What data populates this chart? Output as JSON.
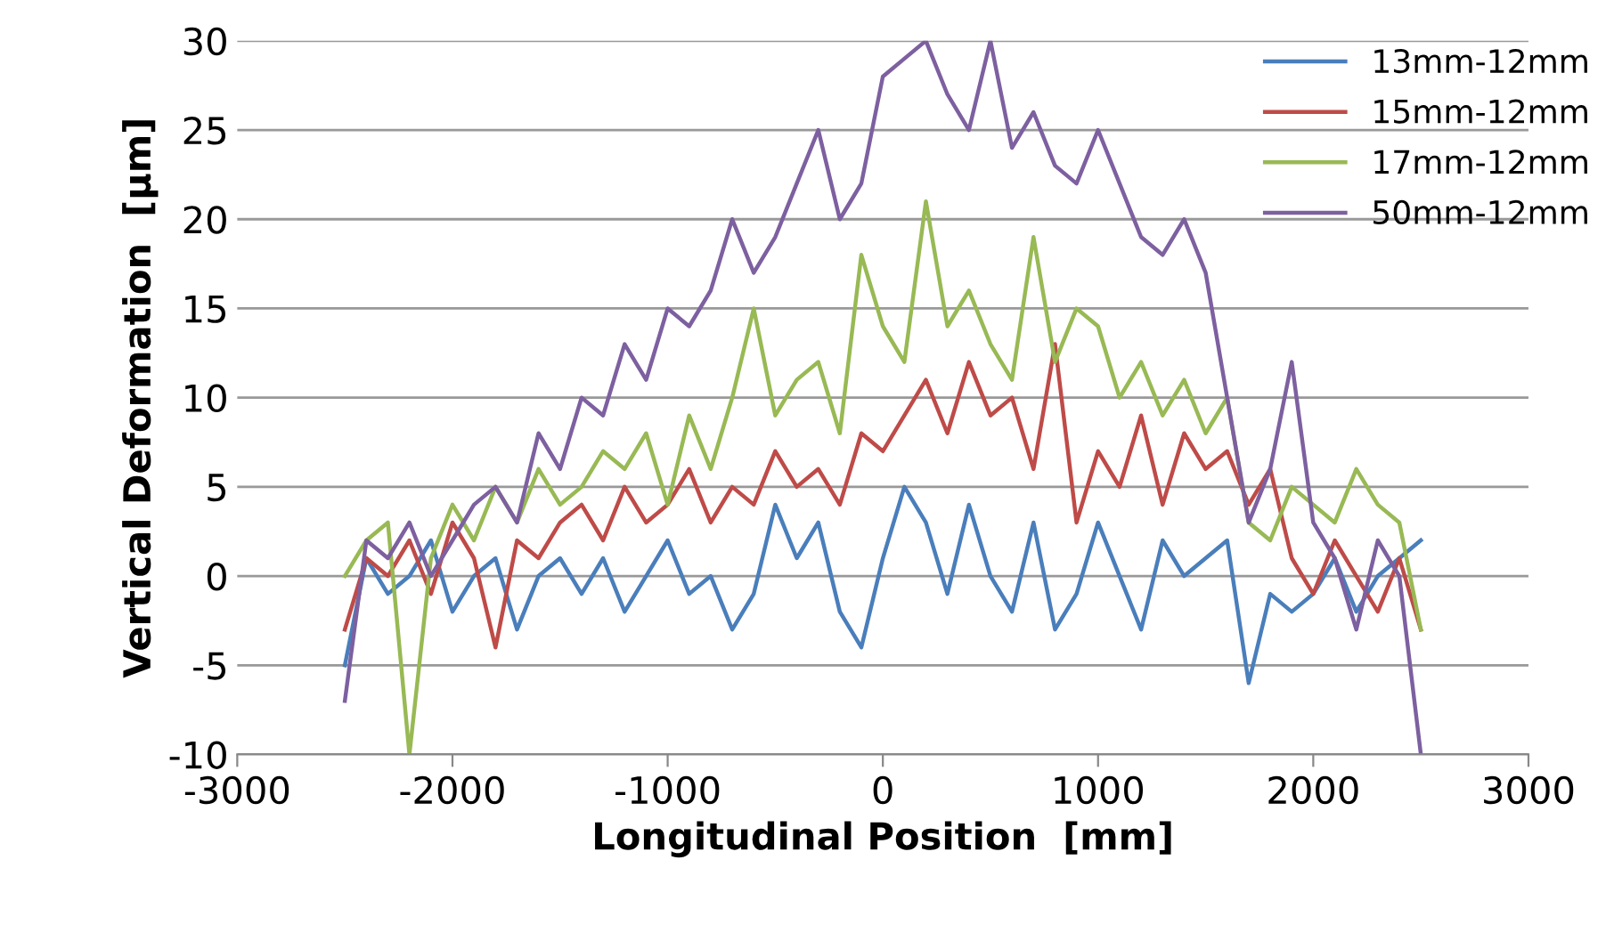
{
  "chart_data": {
    "type": "line",
    "xlabel": "Longitudinal Position  [mm]",
    "ylabel": "Vertical Deformation  [µm]",
    "x": [
      -2500,
      -2400,
      -2300,
      -2200,
      -2100,
      -2000,
      -1900,
      -1800,
      -1700,
      -1600,
      -1500,
      -1400,
      -1300,
      -1200,
      -1100,
      -1000,
      -900,
      -800,
      -700,
      -600,
      -500,
      -400,
      -300,
      -200,
      -100,
      0,
      100,
      200,
      300,
      400,
      500,
      600,
      700,
      800,
      900,
      1000,
      1100,
      1200,
      1300,
      1400,
      1500,
      1600,
      1700,
      1800,
      1900,
      2000,
      2100,
      2200,
      2300,
      2400,
      2500
    ],
    "series": [
      {
        "name": "13mm-12mm",
        "color": "#4a7ebb",
        "values": [
          -5,
          1,
          -1,
          0,
          2,
          -2,
          0,
          1,
          -3,
          0,
          1,
          -1,
          1,
          -2,
          0,
          2,
          -1,
          0,
          -3,
          -1,
          4,
          1,
          3,
          -2,
          -4,
          1,
          5,
          3,
          -1,
          4,
          0,
          -2,
          3,
          -3,
          -1,
          3,
          0,
          -3,
          2,
          0,
          1,
          2,
          -6,
          -1,
          -2,
          -1,
          1,
          -2,
          0,
          1,
          2
        ]
      },
      {
        "name": "15mm-12mm",
        "color": "#be4b48",
        "values": [
          -3,
          1,
          0,
          2,
          -1,
          3,
          1,
          -4,
          2,
          1,
          3,
          4,
          2,
          5,
          3,
          4,
          6,
          3,
          5,
          4,
          7,
          5,
          6,
          4,
          8,
          7,
          9,
          11,
          8,
          12,
          9,
          10,
          6,
          13,
          3,
          7,
          5,
          9,
          4,
          8,
          6,
          7,
          4,
          6,
          1,
          -1,
          2,
          0,
          -2,
          1,
          -3
        ]
      },
      {
        "name": "17mm-12mm",
        "color": "#98b954",
        "values": [
          0,
          2,
          3,
          -10,
          1,
          4,
          2,
          5,
          3,
          6,
          4,
          5,
          7,
          6,
          8,
          4,
          9,
          6,
          10,
          15,
          9,
          11,
          12,
          8,
          18,
          14,
          12,
          21,
          14,
          16,
          13,
          11,
          19,
          12,
          15,
          14,
          10,
          12,
          9,
          11,
          8,
          10,
          3,
          2,
          5,
          4,
          3,
          6,
          4,
          3,
          -3
        ]
      },
      {
        "name": "50mm-12mm",
        "color": "#7d60a0",
        "values": [
          -7,
          2,
          1,
          3,
          0,
          2,
          4,
          5,
          3,
          8,
          6,
          10,
          9,
          13,
          11,
          15,
          14,
          16,
          20,
          17,
          19,
          22,
          25,
          20,
          22,
          28,
          29,
          30,
          27,
          25,
          30,
          24,
          26,
          23,
          22,
          25,
          22,
          19,
          18,
          20,
          17,
          10,
          3,
          6,
          12,
          3,
          1,
          -3,
          2,
          0,
          -10
        ]
      }
    ],
    "xlim": [
      -3000,
      3000
    ],
    "xticks": [
      -3000,
      -2000,
      -1000,
      0,
      1000,
      2000,
      3000
    ],
    "ylim": [
      -10,
      30
    ],
    "yticks": [
      -10,
      -5,
      0,
      5,
      10,
      15,
      20,
      25,
      30
    ],
    "grid": "y",
    "legend": "top right",
    "marker": "none",
    "line_style": "solid"
  }
}
